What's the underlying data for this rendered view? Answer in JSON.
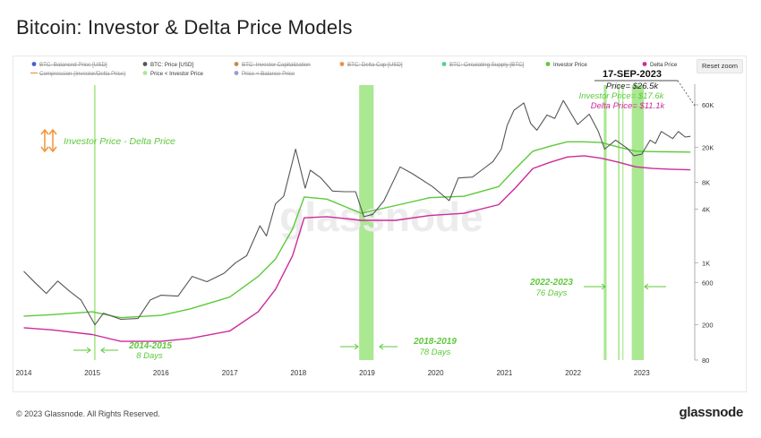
{
  "title": "Bitcoin: Investor & Delta Price Models",
  "footer": {
    "copyright": "© 2023 Glassnode. All Rights Reserved.",
    "brand": "glassnode"
  },
  "watermark": "glassnode",
  "reset_zoom_label": "Reset zoom",
  "legend": [
    {
      "label": "BTC: Balanced Price [USD]",
      "color": "#4a5bd4",
      "struck": true,
      "marker": "dot"
    },
    {
      "label": "BTC: Price [USD]",
      "color": "#555555",
      "struck": false,
      "marker": "dot"
    },
    {
      "label": "BTC: Investor Capitalization",
      "color": "#c8894a",
      "struck": true,
      "marker": "dot"
    },
    {
      "label": "BTC: Delta Cap [USD]",
      "color": "#e8924a",
      "struck": true,
      "marker": "dot"
    },
    {
      "label": "BTC: Circulating Supply [BTC]",
      "color": "#4fd08a",
      "struck": true,
      "marker": "dot"
    },
    {
      "label": "Investor Price",
      "color": "#5dc93b",
      "struck": false,
      "marker": "dot"
    },
    {
      "label": "Delta Price",
      "color": "#cc2b9a",
      "struck": false,
      "marker": "dot"
    },
    {
      "label": "Compression (Investor/Delta Price)",
      "color": "#e8924a",
      "struck": true,
      "marker": "line"
    },
    {
      "label": "Price < Investor Price",
      "color": "#a9ea93",
      "struck": false,
      "marker": "dot"
    },
    {
      "label": "Price < Balance Price",
      "color": "#9a9ad4",
      "struck": true,
      "marker": "dot"
    }
  ],
  "compression_label": "Investor Price - Delta Price",
  "callout": {
    "date": "17-SEP-2023",
    "price": "Price= $26.5k",
    "investor_price": "Investor Price= $17.6k",
    "delta_price": "Delta Price= $11.1k"
  },
  "annotations": [
    {
      "title": "2014-2015",
      "subtitle": "8 Days"
    },
    {
      "title": "2018-2019",
      "subtitle": "78 Days"
    },
    {
      "title": "2022-2023",
      "subtitle": "76 Days"
    }
  ],
  "chart_data": {
    "type": "line",
    "title": "Bitcoin: Investor & Delta Price Models",
    "y_scale": "log",
    "ylim": [
      80,
      100000
    ],
    "xlim": [
      "2013-12-20",
      "2023-10-10"
    ],
    "x_ticks": [
      "2014",
      "2015",
      "2016",
      "2017",
      "2018",
      "2019",
      "2020",
      "2021",
      "2022",
      "2023"
    ],
    "y_ticks": [
      {
        "value": 80,
        "label": "80"
      },
      {
        "value": 200,
        "label": "200"
      },
      {
        "value": 600,
        "label": "600"
      },
      {
        "value": 1000,
        "label": "1K"
      },
      {
        "value": 4000,
        "label": "4K"
      },
      {
        "value": 8000,
        "label": "8K"
      },
      {
        "value": 20000,
        "label": "20K"
      },
      {
        "value": 60000,
        "label": "60K"
      }
    ],
    "grid": false,
    "legend_position": "top",
    "series": [
      {
        "name": "BTC: Price [USD]",
        "color": "#555555",
        "x": [
          "2014-01-01",
          "2014-03-01",
          "2014-05-01",
          "2014-07-01",
          "2014-09-01",
          "2014-11-01",
          "2015-01-15",
          "2015-03-01",
          "2015-06-01",
          "2015-09-01",
          "2015-11-05",
          "2016-01-01",
          "2016-04-01",
          "2016-06-15",
          "2016-09-01",
          "2016-12-01",
          "2017-02-01",
          "2017-04-01",
          "2017-06-10",
          "2017-07-15",
          "2017-09-01",
          "2017-10-15",
          "2017-12-17",
          "2018-02-06",
          "2018-03-05",
          "2018-05-01",
          "2018-07-01",
          "2018-09-01",
          "2018-11-01",
          "2018-12-15",
          "2019-02-01",
          "2019-04-01",
          "2019-06-26",
          "2019-09-01",
          "2019-12-15",
          "2020-03-13",
          "2020-05-01",
          "2020-07-15",
          "2020-09-01",
          "2020-11-01",
          "2020-12-15",
          "2021-01-15",
          "2021-02-20",
          "2021-04-14",
          "2021-05-20",
          "2021-06-22",
          "2021-08-15",
          "2021-09-25",
          "2021-11-10",
          "2022-01-25",
          "2022-03-28",
          "2022-05-15",
          "2022-06-18",
          "2022-08-15",
          "2022-10-15",
          "2022-11-20",
          "2023-01-01",
          "2023-02-15",
          "2023-03-15",
          "2023-04-15",
          "2023-06-15",
          "2023-07-15",
          "2023-08-20",
          "2023-09-17"
        ],
        "values": [
          800,
          600,
          450,
          620,
          480,
          380,
          200,
          270,
          230,
          235,
          380,
          430,
          420,
          700,
          610,
          760,
          1000,
          1200,
          2600,
          2000,
          4600,
          5600,
          19000,
          6900,
          11000,
          9000,
          6400,
          6300,
          6300,
          3300,
          3500,
          5000,
          12000,
          10000,
          7200,
          5000,
          9000,
          9200,
          11000,
          13800,
          19000,
          35000,
          52000,
          63000,
          37000,
          31000,
          46000,
          42000,
          67000,
          36000,
          47000,
          30000,
          19000,
          24000,
          19500,
          16000,
          16700,
          24000,
          22000,
          30000,
          25000,
          30000,
          26000,
          26500
        ]
      },
      {
        "name": "Investor Price",
        "color": "#5dc93b",
        "x": [
          "2014-01-01",
          "2014-06-01",
          "2015-01-01",
          "2015-06-01",
          "2016-01-01",
          "2016-06-01",
          "2017-01-01",
          "2017-06-01",
          "2017-09-01",
          "2017-12-01",
          "2018-02-01",
          "2018-06-01",
          "2018-12-01",
          "2019-06-01",
          "2019-12-01",
          "2020-06-01",
          "2020-12-01",
          "2021-03-01",
          "2021-06-01",
          "2021-09-01",
          "2021-12-01",
          "2022-03-01",
          "2022-06-01",
          "2022-09-01",
          "2022-12-01",
          "2023-03-01",
          "2023-06-01",
          "2023-09-17"
        ],
        "values": [
          250,
          260,
          280,
          240,
          255,
          300,
          410,
          700,
          1100,
          2400,
          5500,
          5200,
          3600,
          4400,
          5400,
          5600,
          7200,
          11500,
          18000,
          20500,
          23000,
          23000,
          22500,
          20000,
          18000,
          17800,
          17700,
          17600
        ]
      },
      {
        "name": "Delta Price",
        "color": "#cc2b9a",
        "x": [
          "2014-01-01",
          "2014-06-01",
          "2015-01-01",
          "2015-06-01",
          "2016-01-01",
          "2016-06-01",
          "2017-01-01",
          "2017-06-01",
          "2017-09-01",
          "2017-12-01",
          "2018-02-01",
          "2018-06-01",
          "2018-12-01",
          "2019-06-01",
          "2019-12-01",
          "2020-06-01",
          "2020-12-01",
          "2021-03-01",
          "2021-06-01",
          "2021-09-01",
          "2021-12-01",
          "2022-03-01",
          "2022-06-01",
          "2022-09-01",
          "2022-12-01",
          "2023-03-01",
          "2023-06-01",
          "2023-09-17"
        ],
        "values": [
          185,
          175,
          155,
          130,
          130,
          140,
          170,
          280,
          500,
          1200,
          3200,
          3300,
          3000,
          3000,
          3400,
          3600,
          4500,
          7000,
          11500,
          13500,
          15500,
          16000,
          15000,
          13500,
          12000,
          11500,
          11300,
          11100
        ]
      }
    ],
    "shaded_periods": [
      {
        "label": "Price < Investor Price",
        "start": "2015-01-10",
        "end": "2015-01-18"
      },
      {
        "label": "Price < Investor Price",
        "start": "2018-11-20",
        "end": "2019-02-05"
      },
      {
        "label": "Price < Investor Price",
        "start": "2022-06-13",
        "end": "2022-06-28"
      },
      {
        "label": "Price < Investor Price",
        "start": "2022-08-28",
        "end": "2022-09-05"
      },
      {
        "label": "Price < Investor Price",
        "start": "2022-09-20",
        "end": "2022-09-25"
      },
      {
        "label": "Price < Investor Price",
        "start": "2022-11-09",
        "end": "2023-01-12"
      }
    ],
    "callout_date": "2023-09-17"
  }
}
